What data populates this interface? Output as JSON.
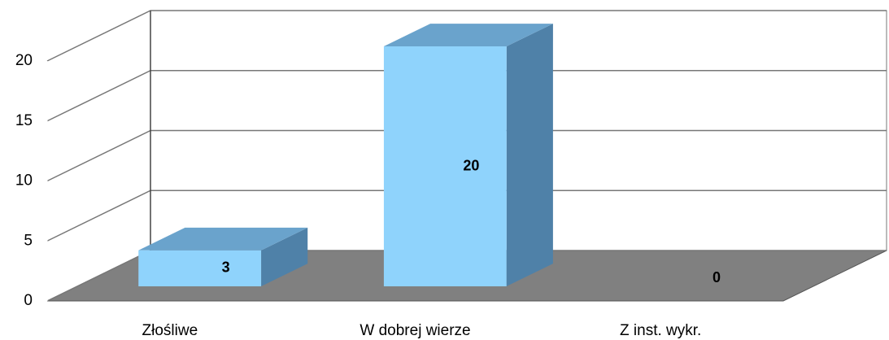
{
  "chart_data": {
    "type": "bar3d",
    "categories": [
      "Złośliwe",
      "W dobrej wierze",
      "Z inst. wykr."
    ],
    "values": [
      3,
      20,
      0
    ],
    "color": "#8fd3fc",
    "ylim": [
      0,
      20
    ],
    "yticks": [
      0,
      5,
      10,
      15,
      20
    ],
    "grid": true
  }
}
